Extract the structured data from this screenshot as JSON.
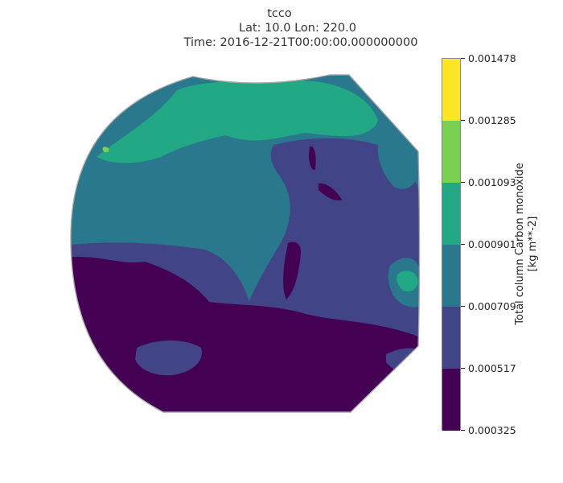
{
  "title": {
    "variable": "tcco",
    "location": "Lat: 10.0 Lon: 220.0",
    "time": "Time: 2016-12-21T00:00:00.000000000"
  },
  "colorbar": {
    "label_line1": "Total column Carbon monoxide",
    "label_line2": "[kg m**-2]",
    "ticks": [
      "0.001478",
      "0.001285",
      "0.001093",
      "0.000901",
      "0.000709",
      "0.000517",
      "0.000325"
    ],
    "colors": [
      "#fde725",
      "#7ad151",
      "#22a884",
      "#2a788e",
      "#414487",
      "#440154"
    ]
  },
  "map": {
    "projection": "orthographic",
    "colors": {
      "lowest": "#440154",
      "low": "#414487",
      "mid": "#2a788e",
      "high": "#22a884",
      "higher": "#7ad151",
      "highest": "#fde725",
      "boundary": "#a8a8a8"
    }
  }
}
